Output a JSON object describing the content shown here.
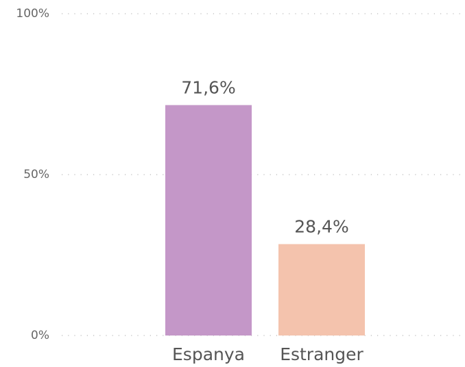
{
  "chart_data": {
    "type": "bar",
    "categories": [
      "Espanya",
      "Estranger"
    ],
    "values": [
      71.6,
      28.4
    ],
    "value_labels": [
      "71,6%",
      "28,4%"
    ],
    "colors": [
      "#c497c8",
      "#f4c3ad"
    ],
    "ylim": [
      0,
      100
    ],
    "yticks": [
      {
        "value": 0,
        "label": "0%"
      },
      {
        "value": 50,
        "label": "50%"
      },
      {
        "value": 100,
        "label": "100%"
      }
    ],
    "grid": true
  }
}
